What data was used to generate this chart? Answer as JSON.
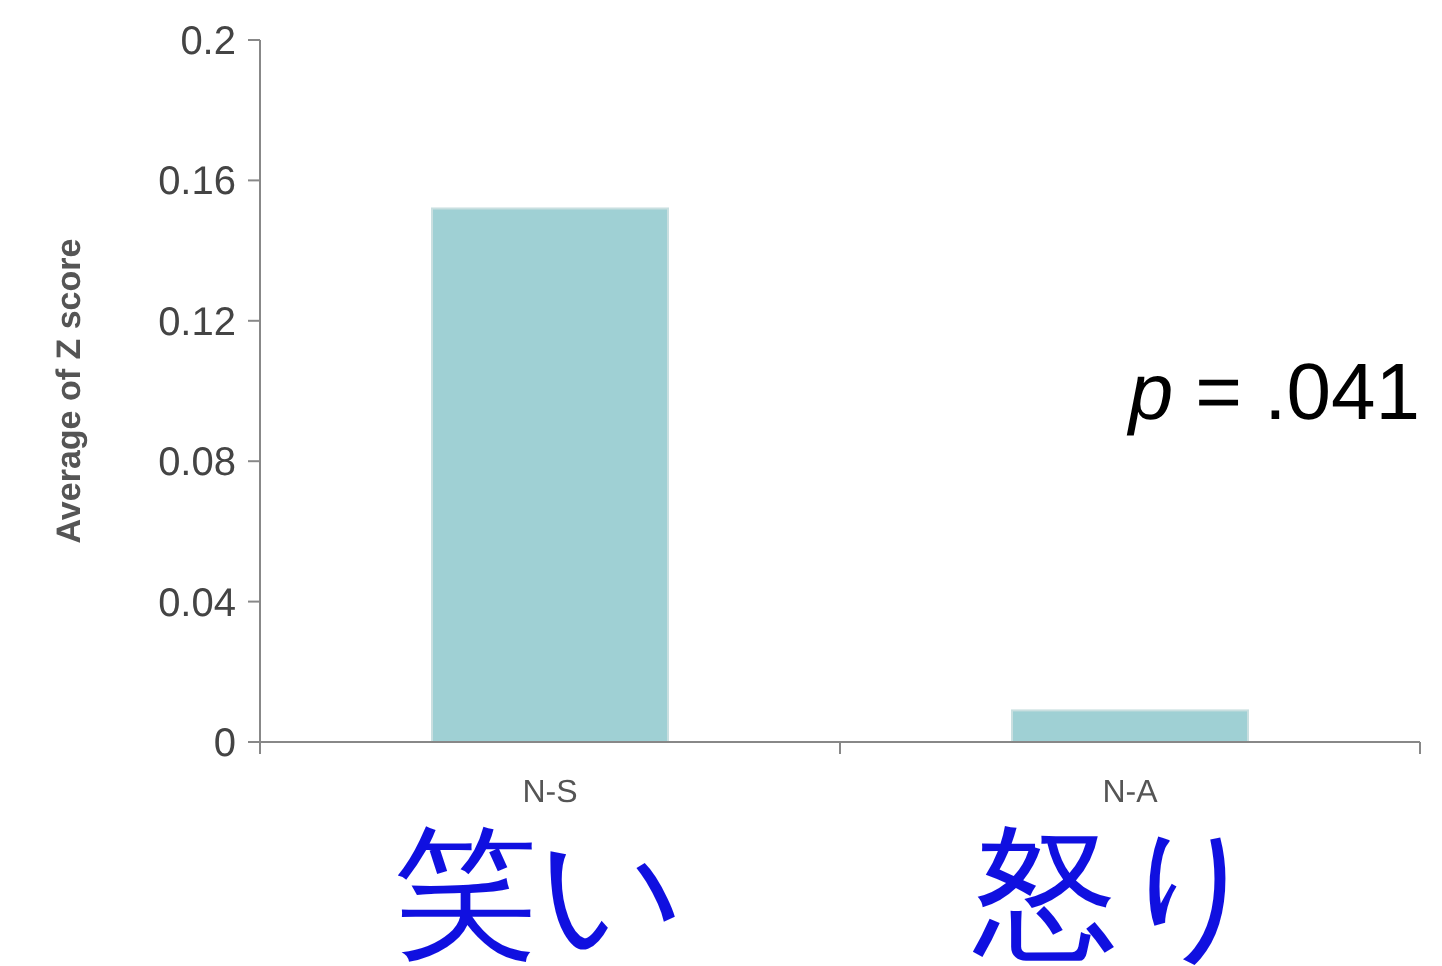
{
  "chart_data": {
    "type": "bar",
    "ylabel": "Average of Z score",
    "categories": [
      "N-S",
      "N-A"
    ],
    "values": [
      0.152,
      0.009
    ],
    "color": "#9fd0d4",
    "ylim": [
      0,
      0.2
    ],
    "yticks": [
      0,
      0.04,
      0.08,
      0.12,
      0.16,
      0.2
    ],
    "annotations": [
      "*p* = .041",
      "笑い",
      "怒り"
    ]
  }
}
